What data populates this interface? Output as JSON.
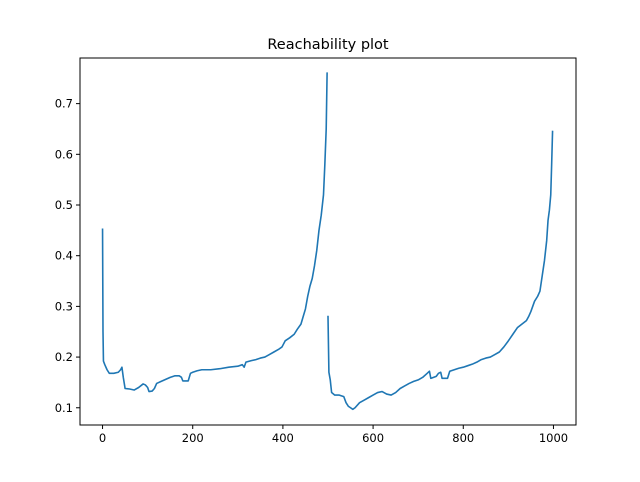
{
  "chart_data": {
    "type": "line",
    "title": "Reachability plot",
    "xlabel": "",
    "ylabel": "",
    "xlim": [
      -50,
      1050
    ],
    "ylim": [
      0.066,
      0.79
    ],
    "xticks": [
      0,
      200,
      400,
      600,
      800,
      1000
    ],
    "yticks": [
      0.1,
      0.2,
      0.3,
      0.4,
      0.5,
      0.6,
      0.7
    ],
    "xtick_labels": [
      "0",
      "200",
      "400",
      "600",
      "800",
      "1000"
    ],
    "ytick_labels": [
      "0.1",
      "0.2",
      "0.3",
      "0.4",
      "0.5",
      "0.6",
      "0.7"
    ],
    "grid": false,
    "line_color": "#1f77b4",
    "series": [
      {
        "segments": [
          [
            [
              0,
              0.452
            ],
            [
              1,
              0.25
            ],
            [
              2,
              0.192
            ],
            [
              5,
              0.185
            ],
            [
              10,
              0.175
            ],
            [
              15,
              0.168
            ],
            [
              25,
              0.168
            ],
            [
              35,
              0.17
            ],
            [
              40,
              0.175
            ],
            [
              43,
              0.18
            ],
            [
              46,
              0.16
            ],
            [
              50,
              0.138
            ],
            [
              60,
              0.137
            ],
            [
              70,
              0.135
            ],
            [
              80,
              0.14
            ],
            [
              90,
              0.147
            ],
            [
              95,
              0.145
            ],
            [
              100,
              0.14
            ],
            [
              103,
              0.132
            ],
            [
              110,
              0.133
            ],
            [
              115,
              0.138
            ],
            [
              120,
              0.148
            ],
            [
              130,
              0.152
            ],
            [
              140,
              0.156
            ],
            [
              150,
              0.16
            ],
            [
              160,
              0.163
            ],
            [
              170,
              0.163
            ],
            [
              175,
              0.16
            ],
            [
              178,
              0.153
            ],
            [
              190,
              0.153
            ],
            [
              195,
              0.168
            ],
            [
              200,
              0.17
            ],
            [
              210,
              0.173
            ],
            [
              220,
              0.175
            ],
            [
              240,
              0.175
            ],
            [
              260,
              0.177
            ],
            [
              280,
              0.18
            ],
            [
              300,
              0.182
            ],
            [
              310,
              0.185
            ],
            [
              314,
              0.18
            ],
            [
              318,
              0.19
            ],
            [
              330,
              0.193
            ],
            [
              340,
              0.195
            ],
            [
              350,
              0.198
            ],
            [
              360,
              0.2
            ],
            [
              370,
              0.205
            ],
            [
              380,
              0.21
            ],
            [
              390,
              0.215
            ],
            [
              398,
              0.22
            ],
            [
              405,
              0.232
            ],
            [
              415,
              0.238
            ],
            [
              425,
              0.245
            ],
            [
              432,
              0.255
            ],
            [
              440,
              0.265
            ],
            [
              445,
              0.28
            ],
            [
              450,
              0.295
            ],
            [
              455,
              0.32
            ],
            [
              460,
              0.34
            ],
            [
              465,
              0.355
            ],
            [
              470,
              0.38
            ],
            [
              475,
              0.41
            ],
            [
              480,
              0.45
            ],
            [
              485,
              0.48
            ],
            [
              490,
              0.52
            ],
            [
              493,
              0.58
            ],
            [
              496,
              0.65
            ],
            [
              498,
              0.76
            ]
          ],
          [
            [
              500,
              0.28
            ],
            [
              502,
              0.17
            ],
            [
              505,
              0.155
            ],
            [
              508,
              0.13
            ],
            [
              515,
              0.125
            ],
            [
              525,
              0.125
            ],
            [
              535,
              0.122
            ],
            [
              540,
              0.11
            ],
            [
              545,
              0.103
            ],
            [
              550,
              0.1
            ],
            [
              555,
              0.097
            ],
            [
              560,
              0.1
            ],
            [
              570,
              0.11
            ],
            [
              580,
              0.115
            ],
            [
              590,
              0.12
            ],
            [
              600,
              0.125
            ],
            [
              610,
              0.13
            ],
            [
              620,
              0.132
            ],
            [
              630,
              0.127
            ],
            [
              640,
              0.125
            ],
            [
              650,
              0.13
            ],
            [
              660,
              0.138
            ],
            [
              670,
              0.143
            ],
            [
              680,
              0.148
            ],
            [
              690,
              0.152
            ],
            [
              700,
              0.155
            ],
            [
              710,
              0.16
            ],
            [
              720,
              0.168
            ],
            [
              725,
              0.172
            ],
            [
              728,
              0.158
            ],
            [
              740,
              0.162
            ],
            [
              745,
              0.168
            ],
            [
              750,
              0.17
            ],
            [
              753,
              0.158
            ],
            [
              765,
              0.158
            ],
            [
              770,
              0.172
            ],
            [
              780,
              0.175
            ],
            [
              790,
              0.178
            ],
            [
              800,
              0.18
            ],
            [
              810,
              0.183
            ],
            [
              820,
              0.186
            ],
            [
              830,
              0.19
            ],
            [
              840,
              0.195
            ],
            [
              850,
              0.198
            ],
            [
              860,
              0.2
            ],
            [
              870,
              0.205
            ],
            [
              880,
              0.21
            ],
            [
              890,
              0.22
            ],
            [
              900,
              0.232
            ],
            [
              910,
              0.245
            ],
            [
              920,
              0.258
            ],
            [
              930,
              0.265
            ],
            [
              940,
              0.272
            ],
            [
              945,
              0.28
            ],
            [
              950,
              0.29
            ],
            [
              958,
              0.31
            ],
            [
              965,
              0.32
            ],
            [
              970,
              0.33
            ],
            [
              975,
              0.36
            ],
            [
              980,
              0.39
            ],
            [
              985,
              0.43
            ],
            [
              988,
              0.47
            ],
            [
              991,
              0.49
            ],
            [
              994,
              0.52
            ],
            [
              996,
              0.58
            ],
            [
              998,
              0.645
            ]
          ]
        ]
      }
    ]
  }
}
